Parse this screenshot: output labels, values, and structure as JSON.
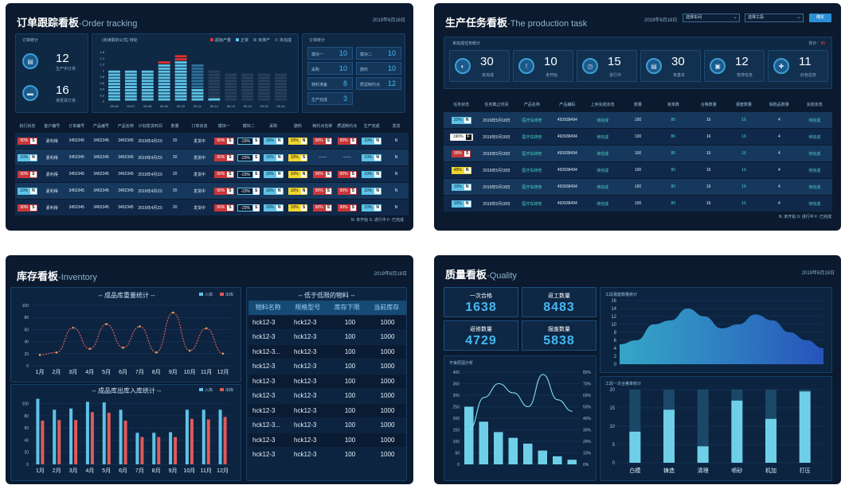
{
  "order": {
    "title": "订单跟踪看板",
    "title_en": "Order tracking",
    "dash": "-",
    "date": "2019年6月18日",
    "stats_label": "订单统计",
    "stat1": {
      "value": "12",
      "label": "生产中订单"
    },
    "stat2": {
      "value": "16",
      "label": "待发货订单"
    },
    "chart_label": "(未读取的公式)  待处",
    "legend": [
      "超级产量",
      "正常",
      "未排产",
      "未完成"
    ],
    "chart_x": [
      "09-06",
      "09-07",
      "09-08",
      "09-09",
      "09-10",
      "09-11",
      "09-12",
      "09-13",
      "09-14",
      "09-15",
      "09-16"
    ],
    "chart_y": [
      "1.6",
      "1.4",
      "1.2",
      "1",
      "0.8",
      "0.6",
      "0.4",
      "0.2",
      "0"
    ],
    "summary_label": "订单统计",
    "summary": [
      {
        "k": "模块一",
        "v": "10"
      },
      {
        "k": "模块二",
        "v": "10"
      },
      {
        "k": "采购",
        "v": "10"
      },
      {
        "k": "筋料",
        "v": "10"
      },
      {
        "k": "物料准备",
        "v": "8"
      },
      {
        "k": "质滤制约点",
        "v": "12"
      },
      {
        "k": "生产完成",
        "v": "3"
      }
    ],
    "headers": [
      "执行状态",
      "客户编号",
      "订单编号",
      "产品编号",
      "产品名称",
      "计划发货时间",
      "数量",
      "订单状态",
      "模块一",
      "模块二",
      "采购",
      "筋料",
      "制约点名称",
      "质滤制约点",
      "生产完成",
      "发货"
    ],
    "rows": [
      {
        "exec": "90%",
        "exec_s": "S",
        "cust": "素利得",
        "ord": "3452345",
        "prod": "3452345",
        "name": "3452345",
        "date": "2019年4月23日",
        "qty": "20",
        "state": "发货中",
        "m1": "90%",
        "m1s": "S",
        "m2": "-23%",
        "m2s": "S",
        "buy": "10%",
        "buys": "N",
        "mat": "10%",
        "mats": "N",
        "p": "90%",
        "ps": "S",
        "q": "90%",
        "qs": "S",
        "done": "10%",
        "dones": "N",
        "ship": "N"
      },
      {
        "exec": "10%",
        "exec_s": "N",
        "cust": "素利得",
        "ord": "3452345",
        "prod": "3452345",
        "name": "3452345",
        "date": "2019年4月23日",
        "qty": "20",
        "state": "发货中",
        "m1": "90%",
        "m1s": "S",
        "m2": "-23%",
        "m2s": "S",
        "buy": "10%",
        "buys": "N",
        "mat": "10%",
        "mats": "S",
        "p": "——",
        "ps": "",
        "q": "——",
        "qs": "",
        "done": "10%",
        "dones": "N",
        "ship": "N"
      },
      {
        "exec": "90%",
        "exec_s": "S",
        "cust": "素利得",
        "ord": "3452345",
        "prod": "3452345",
        "name": "3452345",
        "date": "2019年4月23日",
        "qty": "20",
        "state": "发货中",
        "m1": "90%",
        "m1s": "S",
        "m2": "-23%",
        "m2s": "S",
        "buy": "10%",
        "buys": "N",
        "mat": "10%",
        "mats": "N",
        "p": "90%",
        "ps": "S",
        "q": "90%",
        "qs": "S",
        "done": "10%",
        "dones": "N",
        "ship": "N"
      },
      {
        "exec": "10%",
        "exec_s": "N",
        "cust": "素利得",
        "ord": "3452345",
        "prod": "3452345",
        "name": "3452345",
        "date": "2019年4月23日",
        "qty": "20",
        "state": "发货中",
        "m1": "90%",
        "m1s": "S",
        "m2": "-23%",
        "m2s": "S",
        "buy": "10%",
        "buys": "N",
        "mat": "10%",
        "mats": "N",
        "p": "90%",
        "ps": "S",
        "q": "90%",
        "qs": "S",
        "done": "10%",
        "dones": "N",
        "ship": "N"
      },
      {
        "exec": "90%",
        "exec_s": "S",
        "cust": "素利得",
        "ord": "3452345",
        "prod": "3452345",
        "name": "3452345",
        "date": "2019年4月23日",
        "qty": "20",
        "state": "发货中",
        "m1": "90%",
        "m1s": "S",
        "m2": "-23%",
        "m2s": "S",
        "buy": "10%",
        "buys": "N",
        "mat": "10%",
        "mats": "S",
        "p": "90%",
        "ps": "S",
        "q": "90%",
        "qs": "S",
        "done": "10%",
        "dones": "N",
        "ship": "N"
      }
    ],
    "footer": "N: 未开始    S: 进行中    F: 已完成"
  },
  "production": {
    "title": "生产任务看板",
    "title_en": "The production task",
    "dash": "-",
    "date": "2019年6月18日",
    "select1": "选择车间",
    "select2": "选择工段",
    "btn": "确定",
    "stats_label": "未完成任务统计",
    "total_label": "共计：",
    "total_value": "85",
    "stats": [
      {
        "value": "30",
        "label": "未完成"
      },
      {
        "value": "10",
        "label": "未开始"
      },
      {
        "value": "15",
        "label": "进行中"
      },
      {
        "value": "30",
        "label": "未基本"
      },
      {
        "value": "12",
        "label": "暂停任务"
      },
      {
        "value": "11",
        "label": "红色任务"
      }
    ],
    "headers": [
      "任务状态",
      "任务截止时间",
      "产品名称",
      "产品编码",
      "上序完成状态",
      "数量",
      "良率数",
      "合格数量",
      "报废数量",
      "缺陷品数量",
      "完成状态"
    ],
    "rows": [
      {
        "pct": "10%",
        "s": "N",
        "color": "blue",
        "date": "2019年5月18日",
        "name": "医疗车转管",
        "code": "493938494",
        "up": "待完成",
        "qty": "100",
        "good": "80",
        "pass": "16",
        "scrap": "16",
        "def": "4",
        "state": "待完成"
      },
      {
        "pct": "190%",
        "s": "F",
        "color": "wht",
        "date": "2019年5月18日",
        "name": "医疗车转管",
        "code": "493938494",
        "up": "待完成",
        "qty": "100",
        "good": "80",
        "pass": "16",
        "scrap": "16",
        "def": "4",
        "state": "待完成"
      },
      {
        "pct": "90%",
        "s": "S",
        "color": "red",
        "date": "2019年5月18日",
        "name": "医疗车转管",
        "code": "493938494",
        "up": "待完成",
        "qty": "100",
        "good": "80",
        "pass": "16",
        "scrap": "16",
        "def": "4",
        "state": "待完成"
      },
      {
        "pct": "45%",
        "s": "N",
        "color": "yel",
        "date": "2019年5月18日",
        "name": "医疗车转管",
        "code": "493938494",
        "up": "待完成",
        "qty": "100",
        "good": "80",
        "pass": "16",
        "scrap": "16",
        "def": "4",
        "state": "待完成"
      },
      {
        "pct": "10%",
        "s": "N",
        "color": "blue",
        "date": "2019年5月18日",
        "name": "医疗车转管",
        "code": "493938494",
        "up": "待完成",
        "qty": "100",
        "good": "80",
        "pass": "16",
        "scrap": "16",
        "def": "4",
        "state": "待完成"
      },
      {
        "pct": "10%",
        "s": "N",
        "color": "blue",
        "date": "2019年5月18日",
        "name": "医疗车转管",
        "code": "493938494",
        "up": "待完成",
        "qty": "100",
        "good": "80",
        "pass": "16",
        "scrap": "16",
        "def": "4",
        "state": "待完成"
      }
    ],
    "footer": "N: 未开始    S: 进行中    F: 已完成"
  },
  "inventory": {
    "title": "库存看板",
    "title_en": "Inventory",
    "dash": "-",
    "date": "2019年6月18日",
    "chart1_title": "-- 成品库重量统计 --",
    "chart2_title": "-- 成品库出库入库统计 --",
    "legend_in": "入库",
    "legend_out": "出库",
    "table_title": "-- 低于低限的物料 --",
    "table_headers": [
      "物料名称",
      "规格型号",
      "库存下限",
      "当前库存"
    ],
    "table_rows": [
      [
        "hck12-3",
        "hck12-3",
        "100",
        "1000"
      ],
      [
        "hck12-3",
        "hck12-3",
        "100",
        "1000"
      ],
      [
        "hck12-3...",
        "hck12-3",
        "100",
        "1000"
      ],
      [
        "hck12-3",
        "hck12-3",
        "100",
        "1000"
      ],
      [
        "hck12-3",
        "hck12-3",
        "100",
        "1000"
      ],
      [
        "hck12-3",
        "hck12-3",
        "100",
        "1000"
      ],
      [
        "hck12-3",
        "hck12-3",
        "100",
        "1000"
      ],
      [
        "hck12-3...",
        "hck12-3",
        "100",
        "1000"
      ],
      [
        "hck12-3",
        "hck12-3",
        "100",
        "1000"
      ],
      [
        "hck12-3",
        "hck12-3",
        "100",
        "1000"
      ]
    ]
  },
  "quality": {
    "title": "质量看板",
    "title_en": "Quality",
    "dash": "-",
    "date": "2019年6月18日",
    "kpis": [
      {
        "label": "一次合格",
        "value": "1638"
      },
      {
        "label": "返工数量",
        "value": "8483"
      },
      {
        "label": "返修数量",
        "value": "4729"
      },
      {
        "label": "报废数量",
        "value": "5838"
      }
    ],
    "area_title": "工段报废数量统计",
    "pareto_title": "不良原因分析",
    "bar_title": "工段一次合格率统计"
  },
  "chart_data": [
    {
      "type": "line",
      "title": "-- 成品库重量统计 --",
      "x": [
        "1月",
        "2月",
        "3月",
        "4月",
        "5月",
        "6月",
        "7月",
        "8月",
        "9月",
        "10月",
        "11月",
        "12月"
      ],
      "ylim": [
        0,
        100
      ],
      "yticks": [
        0,
        20,
        40,
        60,
        80,
        100
      ],
      "series": [
        {
          "name": "出库",
          "values": [
            18,
            22,
            63,
            28,
            69,
            30,
            65,
            22,
            88,
            25,
            62,
            20
          ]
        }
      ]
    },
    {
      "type": "bar",
      "title": "-- 成品库出库入库统计 --",
      "categories": [
        "1月",
        "2月",
        "3月",
        "4月",
        "5月",
        "6月",
        "7月",
        "8月",
        "9月",
        "10月",
        "11月",
        "12月"
      ],
      "ylim": [
        0,
        100
      ],
      "yticks": [
        0,
        20,
        40,
        60,
        80,
        100
      ],
      "series": [
        {
          "name": "入库",
          "values": [
            108,
            90,
            92,
            103,
            102,
            90,
            52,
            52,
            53,
            90,
            90,
            90
          ]
        },
        {
          "name": "出库",
          "values": [
            72,
            73,
            73,
            86,
            85,
            72,
            45,
            45,
            45,
            75,
            74,
            78
          ]
        }
      ]
    },
    {
      "type": "area",
      "title": "工段报废数量统计",
      "ylim": [
        0,
        16
      ],
      "yticks": [
        0,
        2,
        4,
        6,
        8,
        10,
        12,
        14,
        16
      ],
      "x": [
        0,
        1,
        2,
        3,
        4,
        5,
        6,
        7,
        8,
        9,
        10,
        11,
        12
      ],
      "series": [
        {
          "values": [
            5,
            6,
            10,
            11,
            14,
            12,
            9,
            10,
            12.5,
            11,
            8,
            6,
            4
          ]
        }
      ]
    },
    {
      "type": "bar",
      "title": "不良原因分析",
      "ylim": [
        0,
        400
      ],
      "yticks": [
        0,
        50,
        100,
        150,
        200,
        250,
        300,
        350,
        400
      ],
      "y2ticks": [
        "0%",
        "10%",
        "20%",
        "30%",
        "40%",
        "50%",
        "60%",
        "70%",
        "80%"
      ],
      "categories": [
        "1",
        "2",
        "3",
        "4",
        "5",
        "6",
        "7",
        "8"
      ],
      "values": [
        250,
        185,
        140,
        115,
        90,
        60,
        35,
        20
      ],
      "line_values_pct": [
        30,
        58,
        70,
        62,
        50,
        78,
        56,
        46
      ]
    },
    {
      "type": "bar",
      "title": "工段一次合格率统计",
      "ylim": [
        0,
        20
      ],
      "yticks": [
        0,
        5,
        10,
        15,
        20
      ],
      "categories": [
        "白模",
        "铸造",
        "清理",
        "喷砂",
        "机加",
        "打压"
      ],
      "totals": [
        20,
        20,
        20,
        20,
        20,
        20
      ],
      "values": [
        8.5,
        14.5,
        4.5,
        17,
        12,
        19.5
      ]
    }
  ],
  "order_chart": {
    "ylim": [
      0,
      1.6
    ],
    "stacks": [
      [
        1.0,
        0,
        0,
        0
      ],
      [
        1.0,
        0,
        0,
        0
      ],
      [
        1.0,
        0,
        0,
        0
      ],
      [
        1.2,
        0.15,
        0,
        0
      ],
      [
        1.3,
        0.2,
        0,
        0
      ],
      [
        0.4,
        0,
        0.8,
        0
      ],
      [
        0.1,
        0,
        0,
        0.9
      ],
      [
        0,
        0,
        0,
        0.9
      ],
      [
        0,
        0,
        0,
        0.9
      ],
      [
        0,
        0,
        0,
        0.9
      ],
      [
        0,
        0,
        0,
        0.9
      ]
    ]
  },
  "colors": {
    "accent": "#46b8f0",
    "blue_bar": "#5ec3e6",
    "red_bar": "#e05a5a",
    "panel": "#0b1a2e"
  }
}
